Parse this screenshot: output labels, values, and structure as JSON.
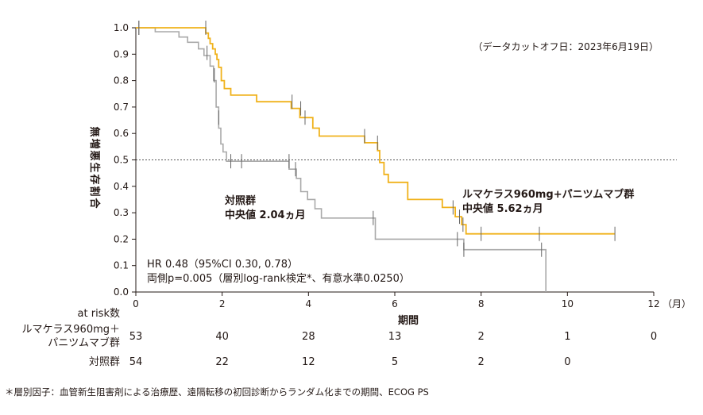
{
  "chart_data": {
    "type": "line",
    "ylabel": "無増悪生存割合",
    "xlabel": "期間",
    "x_unit": "（月）",
    "xlim": [
      0,
      12
    ],
    "ylim": [
      0,
      1.0
    ],
    "x_ticks": [
      0,
      2,
      4,
      6,
      8,
      10,
      12
    ],
    "y_ticks": [
      0.0,
      0.1,
      0.2,
      0.3,
      0.4,
      0.5,
      0.6,
      0.7,
      0.8,
      0.9,
      1.0
    ],
    "data_cutoff": "（データカットオフ日：2023年6月19日）",
    "reference_line": 0.5,
    "series": [
      {
        "name": "ルマケラス960mg+パニツムマブ群",
        "label_line1": "ルマケラス960mg+パニツムマブ群",
        "label_line2": "中央値 5.62ヵ月",
        "color": "#f0b21b",
        "steps": [
          [
            0,
            1.0
          ],
          [
            1.62,
            1.0
          ],
          [
            1.62,
            0.98
          ],
          [
            1.68,
            0.98
          ],
          [
            1.68,
            0.96
          ],
          [
            1.72,
            0.96
          ],
          [
            1.72,
            0.94
          ],
          [
            1.78,
            0.94
          ],
          [
            1.78,
            0.92
          ],
          [
            1.84,
            0.92
          ],
          [
            1.84,
            0.9
          ],
          [
            1.88,
            0.9
          ],
          [
            1.88,
            0.88
          ],
          [
            1.92,
            0.88
          ],
          [
            1.92,
            0.85
          ],
          [
            1.98,
            0.85
          ],
          [
            1.98,
            0.8
          ],
          [
            2.05,
            0.8
          ],
          [
            2.05,
            0.77
          ],
          [
            2.2,
            0.77
          ],
          [
            2.2,
            0.745
          ],
          [
            2.8,
            0.745
          ],
          [
            2.8,
            0.72
          ],
          [
            3.6,
            0.72
          ],
          [
            3.6,
            0.695
          ],
          [
            3.8,
            0.695
          ],
          [
            3.8,
            0.66
          ],
          [
            4.1,
            0.66
          ],
          [
            4.1,
            0.62
          ],
          [
            4.25,
            0.62
          ],
          [
            4.25,
            0.59
          ],
          [
            5.3,
            0.59
          ],
          [
            5.3,
            0.565
          ],
          [
            5.6,
            0.565
          ],
          [
            5.6,
            0.535
          ],
          [
            5.65,
            0.535
          ],
          [
            5.65,
            0.49
          ],
          [
            5.75,
            0.49
          ],
          [
            5.75,
            0.445
          ],
          [
            5.85,
            0.445
          ],
          [
            5.85,
            0.415
          ],
          [
            6.3,
            0.415
          ],
          [
            6.3,
            0.35
          ],
          [
            7.1,
            0.35
          ],
          [
            7.1,
            0.32
          ],
          [
            7.4,
            0.32
          ],
          [
            7.4,
            0.285
          ],
          [
            7.55,
            0.285
          ],
          [
            7.55,
            0.255
          ],
          [
            7.65,
            0.255
          ],
          [
            7.65,
            0.22
          ],
          [
            11.1,
            0.22
          ]
        ],
        "censor_x": [
          0.07,
          1.62,
          3.62,
          3.82,
          3.92,
          5.3,
          5.6,
          7.35,
          7.5,
          7.58,
          8.0,
          9.35,
          11.1
        ],
        "censor_y": [
          1.0,
          1.0,
          0.72,
          0.695,
          0.66,
          0.59,
          0.565,
          0.32,
          0.285,
          0.255,
          0.22,
          0.22,
          0.22
        ]
      },
      {
        "name": "対照群",
        "label_line1": "対照群",
        "label_line2": "中央値 2.04ヵ月",
        "color": "#a9a9a9",
        "steps": [
          [
            0,
            1.0
          ],
          [
            0.45,
            1.0
          ],
          [
            0.45,
            0.985
          ],
          [
            1.0,
            0.985
          ],
          [
            1.0,
            0.965
          ],
          [
            1.2,
            0.965
          ],
          [
            1.2,
            0.945
          ],
          [
            1.45,
            0.945
          ],
          [
            1.45,
            0.92
          ],
          [
            1.58,
            0.92
          ],
          [
            1.58,
            0.895
          ],
          [
            1.72,
            0.895
          ],
          [
            1.72,
            0.855
          ],
          [
            1.8,
            0.855
          ],
          [
            1.8,
            0.8
          ],
          [
            1.86,
            0.8
          ],
          [
            1.86,
            0.7
          ],
          [
            1.92,
            0.7
          ],
          [
            1.92,
            0.62
          ],
          [
            1.97,
            0.62
          ],
          [
            1.97,
            0.56
          ],
          [
            2.02,
            0.56
          ],
          [
            2.02,
            0.53
          ],
          [
            2.1,
            0.53
          ],
          [
            2.1,
            0.495
          ],
          [
            3.55,
            0.495
          ],
          [
            3.55,
            0.465
          ],
          [
            3.72,
            0.465
          ],
          [
            3.72,
            0.43
          ],
          [
            3.82,
            0.43
          ],
          [
            3.82,
            0.38
          ],
          [
            3.98,
            0.38
          ],
          [
            3.98,
            0.35
          ],
          [
            4.15,
            0.35
          ],
          [
            4.15,
            0.315
          ],
          [
            4.3,
            0.315
          ],
          [
            4.3,
            0.28
          ],
          [
            5.55,
            0.28
          ],
          [
            5.55,
            0.2
          ],
          [
            7.6,
            0.2
          ],
          [
            7.6,
            0.16
          ],
          [
            9.5,
            0.16
          ],
          [
            9.5,
            0.0
          ]
        ],
        "censor_x": [
          0.07,
          1.65,
          1.82,
          1.92,
          2.2,
          2.45,
          3.55,
          3.7,
          5.5,
          7.45,
          7.6,
          9.4
        ],
        "censor_y": [
          1.0,
          0.905,
          0.82,
          0.66,
          0.495,
          0.495,
          0.495,
          0.465,
          0.28,
          0.2,
          0.16,
          0.16
        ]
      }
    ],
    "stats_line1": "HR 0.48（95%CI 0.30, 0.78）",
    "stats_line2": "両側p=0.005（層別log-rank検定*、有意水準0.0250）",
    "at_risk": {
      "header": "at risk数",
      "rows": [
        {
          "label_line1": "ルマケラス960mg＋",
          "label_line2": "パニツムマブ群",
          "values": [
            "53",
            "40",
            "28",
            "13",
            "2",
            "1",
            "0"
          ]
        },
        {
          "label_line1": "対照群",
          "label_line2": "",
          "values": [
            "54",
            "22",
            "12",
            "5",
            "2",
            "0",
            ""
          ]
        }
      ]
    }
  },
  "footnote": "＊層別因子：血管新生阻害剤による治療歴、遠隔転移の初回診断からランダム化までの期間、ECOG PS"
}
